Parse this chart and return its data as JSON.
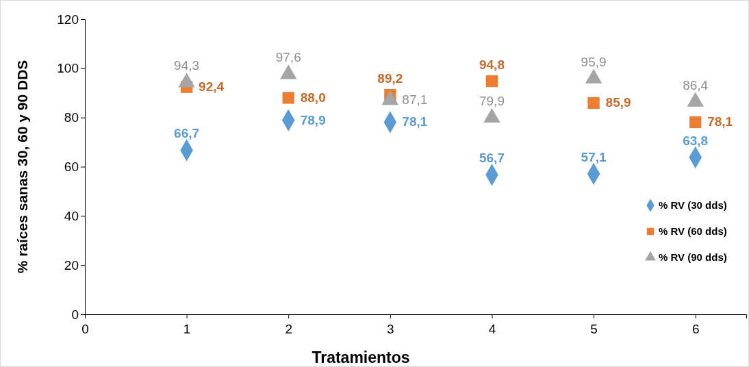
{
  "chart_data": {
    "type": "scatter",
    "xlabel": "Tratamientos",
    "ylabel": "% raíces sanas 30, 60 y 90 DDS",
    "x": [
      1,
      2,
      3,
      4,
      5,
      6
    ],
    "xlim": [
      0,
      6.5
    ],
    "xticks": [
      0,
      1,
      2,
      3,
      4,
      5,
      6
    ],
    "ylim": [
      0,
      120
    ],
    "yticks": [
      0,
      20,
      40,
      60,
      80,
      100,
      120
    ],
    "grid": false,
    "legend": "right",
    "series": [
      {
        "name": "% RV (30 dds)",
        "color": "#5b9bd5",
        "marker": "diamond",
        "values": [
          66.7,
          78.9,
          78.1,
          56.7,
          57.1,
          63.8
        ],
        "value_labels": [
          "66,7",
          "78,9",
          "78,1",
          "56,7",
          "57,1",
          "63,8"
        ]
      },
      {
        "name": "% RV (60 dds)",
        "color": "#ed7d31",
        "marker": "square",
        "values": [
          92.4,
          88.0,
          89.2,
          94.8,
          85.9,
          78.1
        ],
        "value_labels": [
          "92,4",
          "88,0",
          "89,2",
          "94,8",
          "85,9",
          "78,1"
        ]
      },
      {
        "name": "% RV (90 dds)",
        "color": "#a5a5a5",
        "marker": "triangle",
        "values": [
          94.3,
          97.6,
          87.1,
          79.9,
          95.9,
          86.4
        ],
        "value_labels": [
          "94,3",
          "97,6",
          "87,1",
          "79,9",
          "95,9",
          "86,4"
        ]
      }
    ]
  }
}
